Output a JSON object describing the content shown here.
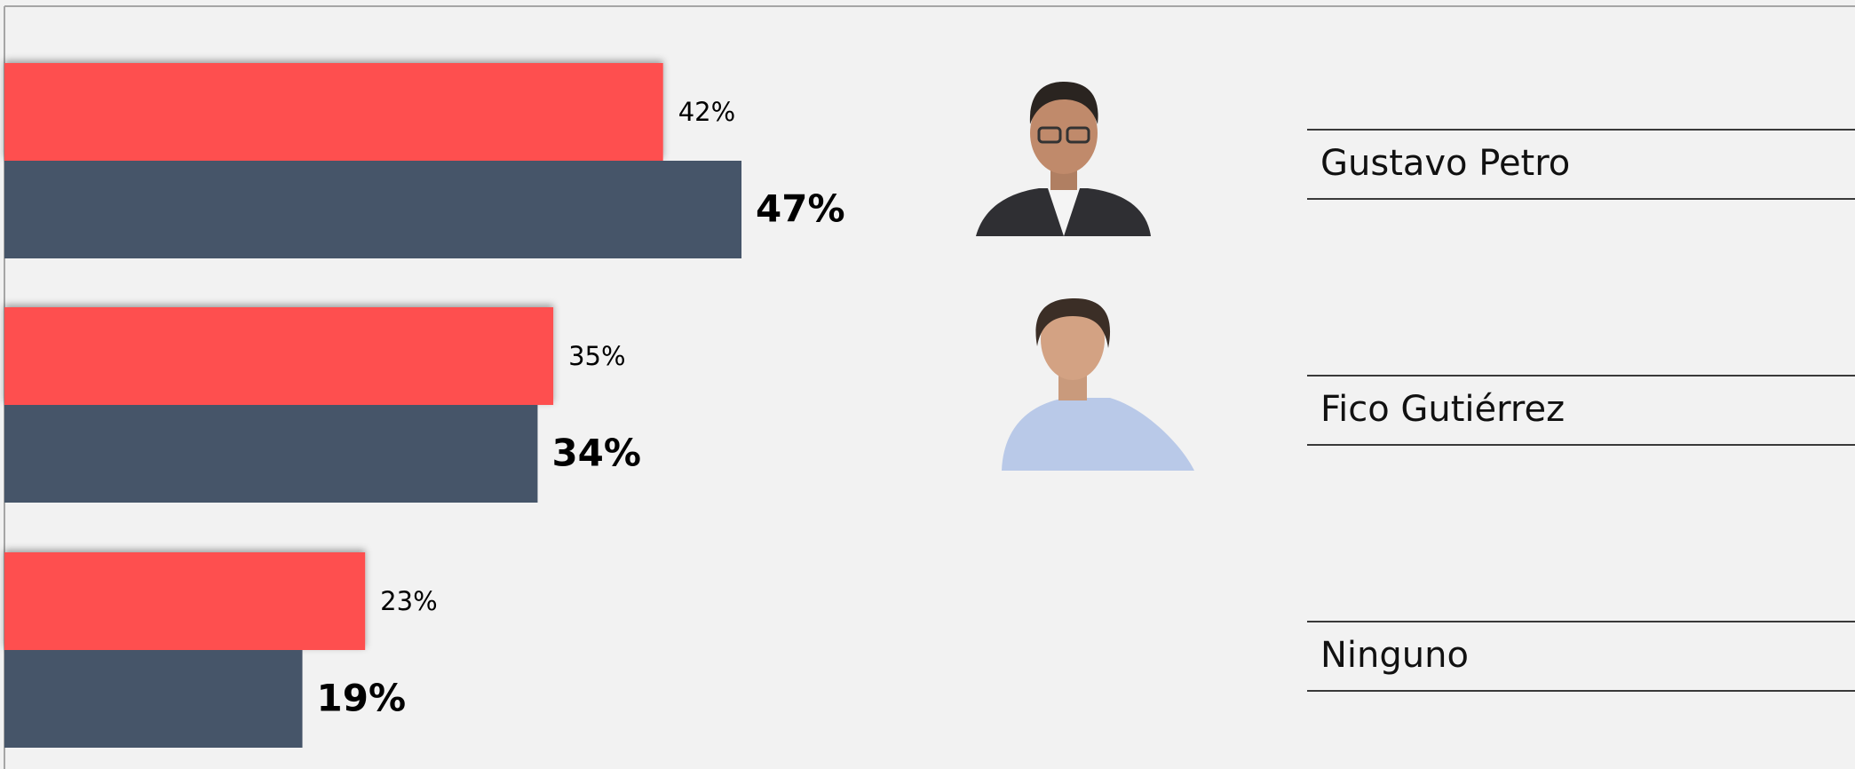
{
  "chart_data": {
    "type": "bar",
    "orientation": "horizontal",
    "categories": [
      "Gustavo Petro",
      "Fico Gutiérrez",
      "Ninguno"
    ],
    "series": [
      {
        "color": "#fe4f4f",
        "values": [
          42,
          35,
          23
        ],
        "value_labels": [
          "42%",
          "35%",
          "23%"
        ]
      },
      {
        "color": "#465569",
        "values": [
          47,
          34,
          19
        ],
        "value_labels": [
          "47%",
          "34%",
          "19%"
        ]
      }
    ]
  }
}
